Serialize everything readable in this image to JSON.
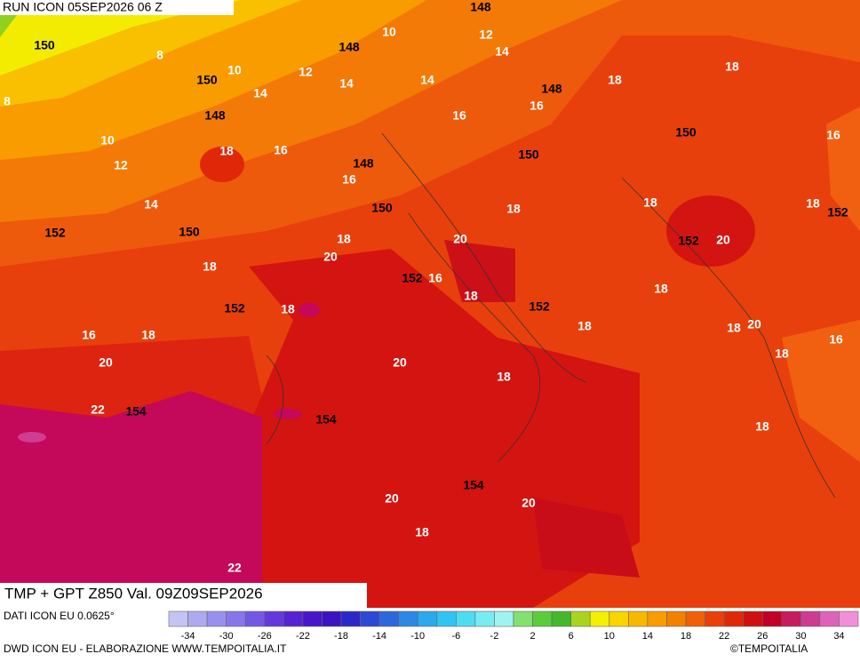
{
  "header": {
    "run": "RUN ICON 05SEP2026 06 Z"
  },
  "map": {
    "title": "TMP + GPT Z850 Val. 09Z09SEP2026",
    "temperature_labels": [
      10,
      12,
      14,
      8,
      10,
      12,
      14,
      14,
      14,
      16,
      16,
      18,
      18,
      8,
      10,
      12,
      18,
      16,
      16,
      14,
      18,
      18,
      18,
      16,
      18,
      20,
      20,
      20,
      18,
      16,
      18,
      18,
      18,
      16,
      18,
      18,
      18,
      20,
      16,
      18,
      20,
      20,
      18,
      22,
      18,
      20,
      20,
      18,
      22
    ],
    "height_labels": [
      148,
      150,
      148,
      150,
      148,
      148,
      150,
      150,
      148,
      150,
      152,
      150,
      152,
      152,
      152,
      152,
      152,
      154,
      154,
      154
    ]
  },
  "legend": {
    "source": "DATI ICON EU 0.0625°",
    "range": [
      -36,
      36
    ],
    "colors": [
      "#c4c4f4",
      "#aeaaf0",
      "#9890ee",
      "#8676ea",
      "#7458e4",
      "#6438dc",
      "#5622d2",
      "#4816c8",
      "#3a14c0",
      "#2c28c8",
      "#2c48d4",
      "#2c68dc",
      "#2c88e4",
      "#2ca8ec",
      "#30c4f0",
      "#50dcf0",
      "#78ecf0",
      "#a0f4f0",
      "#84e070",
      "#5ccc3c",
      "#44b82c",
      "#a8d420",
      "#f4f000",
      "#f8d400",
      "#f8b800",
      "#f89c00",
      "#f48000",
      "#f06008",
      "#e84008",
      "#e02808",
      "#d01010",
      "#c00028",
      "#c41c5c",
      "#cc3c90",
      "#dc64b8",
      "#f090d8"
    ],
    "ticks": [
      -34,
      -30,
      -26,
      -22,
      -18,
      -14,
      -10,
      -6,
      -2,
      2,
      6,
      10,
      14,
      18,
      22,
      26,
      30,
      34
    ]
  },
  "footer": {
    "credit": "DWD ICON EU - ELABORAZIONE WWW.TEMPOITALIA.IT",
    "copyright": "©TEMPOITALIA"
  }
}
